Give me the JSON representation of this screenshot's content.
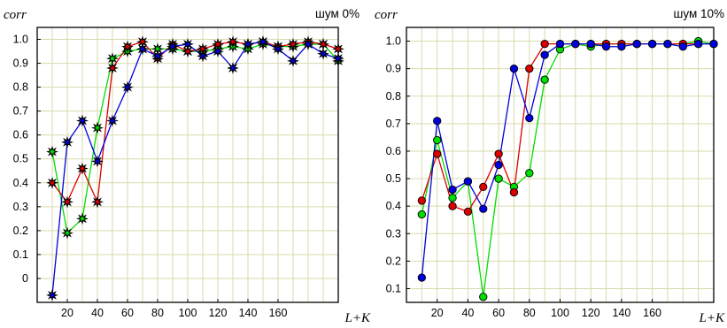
{
  "chart_data": [
    {
      "type": "line",
      "title": "шум 0%",
      "ylabel": "corr",
      "xlabel": "L+K",
      "xlim": [
        0,
        200
      ],
      "ylim": [
        -0.1,
        1.05
      ],
      "x_ticks": [
        {
          "v": 20,
          "label": "20"
        },
        {
          "v": 40,
          "label": "40"
        },
        {
          "v": 60,
          "label": "60"
        },
        {
          "v": 80,
          "label": "80"
        },
        {
          "v": 100,
          "label": "100"
        },
        {
          "v": 120,
          "label": "120"
        },
        {
          "v": 140,
          "label": "140"
        },
        {
          "v": 160,
          "label": "160"
        }
      ],
      "x_grid": [
        10,
        20,
        30,
        40,
        50,
        60,
        70,
        80,
        90,
        100,
        110,
        120,
        130,
        140,
        150,
        160,
        170,
        180,
        190,
        200
      ],
      "y_ticks": [
        {
          "v": 0.0,
          "label": "0"
        },
        {
          "v": 0.1,
          "label": "0.1"
        },
        {
          "v": 0.2,
          "label": "0.2"
        },
        {
          "v": 0.3,
          "label": "0.3"
        },
        {
          "v": 0.4,
          "label": "0.4"
        },
        {
          "v": 0.5,
          "label": "0.5"
        },
        {
          "v": 0.6,
          "label": "0.6"
        },
        {
          "v": 0.7,
          "label": "0.7"
        },
        {
          "v": 0.8,
          "label": "0.8"
        },
        {
          "v": 0.9,
          "label": "0.9"
        },
        {
          "v": 1.0,
          "label": "1.0"
        }
      ],
      "marker": "star",
      "grid": true,
      "x": [
        10,
        20,
        30,
        40,
        50,
        60,
        70,
        80,
        90,
        100,
        110,
        120,
        130,
        140,
        150,
        160,
        170,
        180,
        190,
        200
      ],
      "series": [
        {
          "color": "#00dd00",
          "values": [
            0.53,
            0.19,
            0.25,
            0.63,
            0.92,
            0.95,
            0.96,
            0.96,
            0.96,
            0.95,
            0.95,
            0.96,
            0.97,
            0.96,
            0.98,
            0.97,
            0.97,
            0.98,
            0.98,
            0.91
          ]
        },
        {
          "color": "#dd0000",
          "values": [
            0.4,
            0.32,
            0.46,
            0.32,
            0.88,
            0.97,
            0.99,
            0.92,
            0.98,
            0.95,
            0.96,
            0.98,
            0.99,
            0.98,
            0.99,
            0.97,
            0.98,
            0.99,
            0.98,
            0.96
          ]
        },
        {
          "color": "#0000dd",
          "values": [
            -0.07,
            0.57,
            0.66,
            0.49,
            0.66,
            0.8,
            0.96,
            0.93,
            0.97,
            0.98,
            0.93,
            0.95,
            0.88,
            0.98,
            0.99,
            0.96,
            0.91,
            0.98,
            0.94,
            0.92
          ]
        }
      ]
    },
    {
      "type": "line",
      "title": "шум 10%",
      "ylabel": "corr",
      "xlabel": "L+K",
      "xlim": [
        0,
        200
      ],
      "ylim": [
        0.05,
        1.05
      ],
      "x_ticks": [
        {
          "v": 20,
          "label": "20"
        },
        {
          "v": 40,
          "label": "40"
        },
        {
          "v": 60,
          "label": "60"
        },
        {
          "v": 80,
          "label": "80"
        },
        {
          "v": 100,
          "label": "100"
        },
        {
          "v": 120,
          "label": "120"
        },
        {
          "v": 140,
          "label": "140"
        },
        {
          "v": 160,
          "label": "160"
        }
      ],
      "x_grid": [
        10,
        20,
        30,
        40,
        50,
        60,
        70,
        80,
        90,
        100,
        110,
        120,
        130,
        140,
        150,
        160,
        170,
        180,
        190,
        200
      ],
      "y_ticks": [
        {
          "v": 0.1,
          "label": "0.1"
        },
        {
          "v": 0.2,
          "label": "0.2"
        },
        {
          "v": 0.3,
          "label": "0.3"
        },
        {
          "v": 0.4,
          "label": "0.4"
        },
        {
          "v": 0.5,
          "label": "0.5"
        },
        {
          "v": 0.6,
          "label": "0.6"
        },
        {
          "v": 0.7,
          "label": "0.7"
        },
        {
          "v": 0.8,
          "label": "0.8"
        },
        {
          "v": 0.9,
          "label": "0.9"
        },
        {
          "v": 1.0,
          "label": "1.0"
        }
      ],
      "marker": "circle",
      "grid": true,
      "x": [
        10,
        20,
        30,
        40,
        50,
        60,
        70,
        80,
        90,
        100,
        110,
        120,
        130,
        140,
        150,
        160,
        170,
        180,
        190,
        200
      ],
      "series": [
        {
          "color": "#00dd00",
          "values": [
            0.37,
            0.64,
            0.43,
            0.49,
            0.07,
            0.5,
            0.47,
            0.52,
            0.86,
            0.97,
            0.99,
            0.98,
            0.99,
            0.99,
            0.99,
            0.99,
            0.99,
            0.99,
            1.0,
            0.99
          ]
        },
        {
          "color": "#dd0000",
          "values": [
            0.42,
            0.59,
            0.4,
            0.38,
            0.47,
            0.59,
            0.45,
            0.9,
            0.99,
            0.99,
            0.99,
            0.99,
            0.99,
            0.99,
            0.99,
            0.99,
            0.99,
            0.99,
            0.99,
            0.99
          ]
        },
        {
          "color": "#0000dd",
          "values": [
            0.14,
            0.71,
            0.46,
            0.49,
            0.39,
            0.55,
            0.9,
            0.72,
            0.95,
            0.99,
            0.99,
            0.99,
            0.98,
            0.98,
            0.99,
            0.99,
            0.99,
            0.98,
            0.99,
            0.99
          ]
        }
      ]
    }
  ]
}
